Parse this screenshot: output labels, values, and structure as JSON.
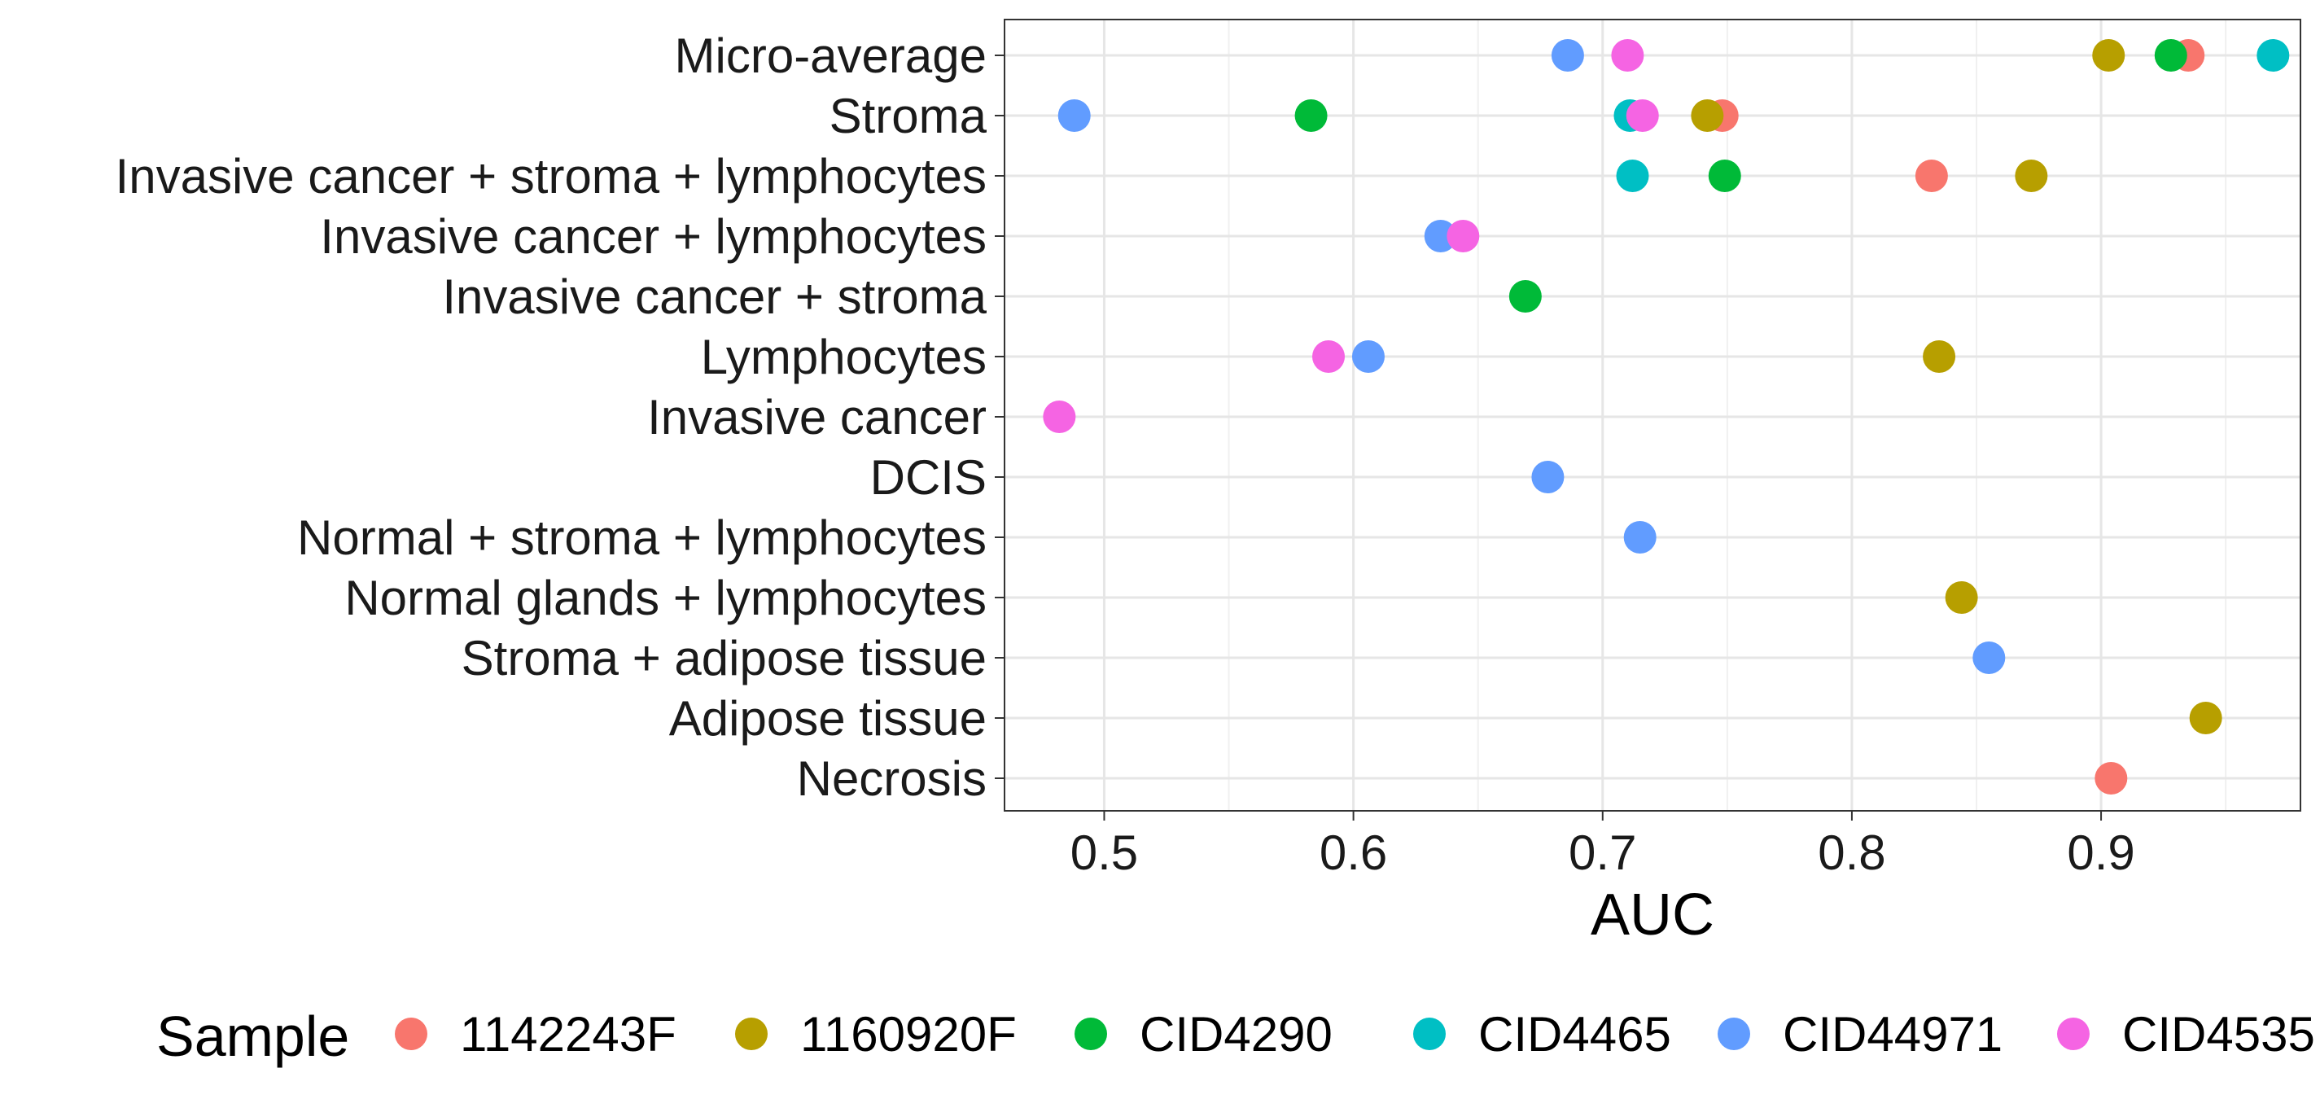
{
  "chart_data": {
    "type": "scatter",
    "xlabel": "AUC",
    "ylabel": "",
    "xlim": [
      0.46,
      0.98
    ],
    "x_ticks": [
      "0.5",
      "0.6",
      "0.7",
      "0.8",
      "0.9"
    ],
    "grid": true,
    "legend_position": "bottom",
    "categories": [
      "Micro-average",
      "Stroma",
      "Invasive cancer + stroma + lymphocytes",
      "Invasive cancer + lymphocytes",
      "Invasive cancer + stroma",
      "Lymphocytes",
      "Invasive cancer",
      "DCIS",
      "Normal + stroma + lymphocytes",
      "Normal glands + lymphocytes",
      "Stroma + adipose tissue",
      "Adipose tissue",
      "Necrosis"
    ],
    "legend": {
      "title": "Sample"
    },
    "series": [
      {
        "name": "1142243F",
        "color": "#F8766D",
        "points": [
          {
            "category": "Micro-average",
            "x": 0.935
          },
          {
            "category": "Stroma",
            "x": 0.748
          },
          {
            "category": "Invasive cancer + stroma + lymphocytes",
            "x": 0.832
          },
          {
            "category": "Necrosis",
            "x": 0.904
          }
        ]
      },
      {
        "name": "1160920F",
        "color": "#B79F00",
        "points": [
          {
            "category": "Micro-average",
            "x": 0.903
          },
          {
            "category": "Stroma",
            "x": 0.742
          },
          {
            "category": "Invasive cancer + stroma + lymphocytes",
            "x": 0.872
          },
          {
            "category": "Lymphocytes",
            "x": 0.835
          },
          {
            "category": "Normal glands + lymphocytes",
            "x": 0.844
          },
          {
            "category": "Adipose tissue",
            "x": 0.942
          }
        ]
      },
      {
        "name": "CID4290",
        "color": "#00BA38",
        "points": [
          {
            "category": "Micro-average",
            "x": 0.928
          },
          {
            "category": "Stroma",
            "x": 0.583
          },
          {
            "category": "Invasive cancer + stroma + lymphocytes",
            "x": 0.749
          },
          {
            "category": "Invasive cancer + stroma",
            "x": 0.669
          }
        ]
      },
      {
        "name": "CID4465",
        "color": "#00BFC4",
        "points": [
          {
            "category": "Micro-average",
            "x": 0.969
          },
          {
            "category": "Stroma",
            "x": 0.711
          },
          {
            "category": "Invasive cancer + stroma + lymphocytes",
            "x": 0.712
          }
        ]
      },
      {
        "name": "CID44971",
        "color": "#619CFF",
        "points": [
          {
            "category": "Micro-average",
            "x": 0.686
          },
          {
            "category": "Stroma",
            "x": 0.488
          },
          {
            "category": "Invasive cancer + lymphocytes",
            "x": 0.635
          },
          {
            "category": "Lymphocytes",
            "x": 0.606
          },
          {
            "category": "DCIS",
            "x": 0.678
          },
          {
            "category": "Normal + stroma + lymphocytes",
            "x": 0.715
          },
          {
            "category": "Stroma + adipose tissue",
            "x": 0.855
          }
        ]
      },
      {
        "name": "CID4535",
        "color": "#F564E3",
        "points": [
          {
            "category": "Micro-average",
            "x": 0.71
          },
          {
            "category": "Stroma",
            "x": 0.716
          },
          {
            "category": "Invasive cancer + lymphocytes",
            "x": 0.644
          },
          {
            "category": "Lymphocytes",
            "x": 0.59
          },
          {
            "category": "Invasive cancer",
            "x": 0.482
          }
        ]
      }
    ]
  }
}
